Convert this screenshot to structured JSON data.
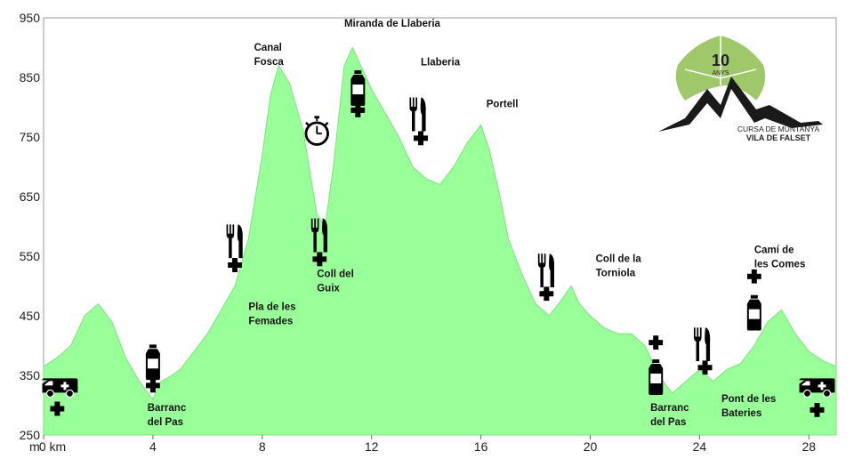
{
  "chart_data": {
    "type": "area",
    "title": "",
    "xlabel": "",
    "ylabel": "",
    "y_unit": "m",
    "x_unit": "km",
    "xlim": [
      0,
      29
    ],
    "ylim": [
      250,
      950
    ],
    "x_ticks": [
      0,
      4,
      8,
      12,
      16,
      20,
      24,
      28
    ],
    "y_ticks": [
      250,
      350,
      450,
      550,
      650,
      750,
      850,
      950
    ],
    "x_tick_labels": [
      "0 km",
      "4",
      "8",
      "12",
      "16",
      "20",
      "24",
      "28"
    ],
    "y_axis_unit_label": "m",
    "grid": false,
    "fill_color": "#99ff99",
    "series": [
      {
        "x": [
          0,
          0.5,
          1.0,
          1.5,
          2.0,
          2.5,
          3.0,
          3.5,
          4.0,
          4.3,
          4.7,
          5.0,
          5.5,
          6.0,
          6.5,
          7.0,
          7.5,
          8.0,
          8.3,
          8.6,
          9.0,
          9.5,
          10.0,
          10.3,
          10.6,
          11.0,
          11.3,
          11.6,
          12.0,
          12.5,
          13.0,
          13.5,
          14.0,
          14.5,
          15.0,
          15.5,
          16.0,
          16.3,
          16.7,
          17.0,
          17.5,
          18.0,
          18.5,
          19.0,
          19.3,
          19.6,
          20.0,
          20.5,
          21.0,
          21.5,
          22.0,
          22.5,
          23.0,
          23.5,
          24.0,
          24.5,
          25.0,
          25.5,
          26.0,
          26.5,
          27.0,
          27.5,
          28.0,
          28.5,
          29.0
        ],
        "y": [
          365,
          380,
          400,
          450,
          470,
          440,
          380,
          340,
          310,
          340,
          350,
          360,
          390,
          420,
          460,
          500,
          580,
          720,
          820,
          870,
          840,
          760,
          620,
          600,
          700,
          870,
          900,
          870,
          830,
          790,
          750,
          700,
          680,
          670,
          700,
          740,
          770,
          730,
          650,
          580,
          520,
          470,
          450,
          480,
          500,
          470,
          450,
          430,
          420,
          420,
          400,
          350,
          320,
          340,
          360,
          340,
          360,
          370,
          400,
          440,
          460,
          420,
          390,
          375,
          365
        ]
      }
    ],
    "annotations": [
      {
        "lines": [
          "Miranda de Llaberia"
        ],
        "x": 11.0,
        "y": 935
      },
      {
        "lines": [
          "Canal",
          "Fosca"
        ],
        "x": 7.7,
        "y": 895
      },
      {
        "lines": [
          "Llaberia"
        ],
        "x": 13.8,
        "y": 870
      },
      {
        "lines": [
          "Portell"
        ],
        "x": 16.2,
        "y": 800
      },
      {
        "lines": [
          "Coll del",
          "Guix"
        ],
        "x": 10.0,
        "y": 515
      },
      {
        "lines": [
          "Pla de les",
          "Femades"
        ],
        "x": 7.5,
        "y": 460
      },
      {
        "lines": [
          "Coll de la",
          "Torniola"
        ],
        "x": 20.2,
        "y": 540
      },
      {
        "lines": [
          "Camí de",
          "les Comes"
        ],
        "x": 26.0,
        "y": 555
      },
      {
        "lines": [
          "Barranc",
          "del Pas"
        ],
        "x": 3.8,
        "y": 290
      },
      {
        "lines": [
          "Barranc",
          "del Pas"
        ],
        "x": 22.2,
        "y": 290
      },
      {
        "lines": [
          "Pont de les",
          "Bateries"
        ],
        "x": 24.8,
        "y": 305
      }
    ],
    "icons": [
      {
        "name": "ambulance-icon",
        "x": 0.6,
        "y": 330
      },
      {
        "name": "first-aid-cross-icon",
        "x": 0.5,
        "y": 294
      },
      {
        "name": "water-bottle-icon",
        "x": 4.0,
        "y": 372
      },
      {
        "name": "first-aid-cross-icon",
        "x": 4.0,
        "y": 333
      },
      {
        "name": "cutlery-icon",
        "x": 7.0,
        "y": 575
      },
      {
        "name": "first-aid-cross-icon",
        "x": 7.0,
        "y": 535
      },
      {
        "name": "cutlery-icon",
        "x": 10.1,
        "y": 585
      },
      {
        "name": "first-aid-cross-icon",
        "x": 10.1,
        "y": 545
      },
      {
        "name": "stopwatch-icon",
        "x": 10.0,
        "y": 760
      },
      {
        "name": "water-bottle-icon",
        "x": 11.5,
        "y": 832
      },
      {
        "name": "first-aid-cross-icon",
        "x": 11.5,
        "y": 795
      },
      {
        "name": "cutlery-icon",
        "x": 13.7,
        "y": 788
      },
      {
        "name": "first-aid-cross-icon",
        "x": 13.8,
        "y": 748
      },
      {
        "name": "cutlery-icon",
        "x": 18.4,
        "y": 526
      },
      {
        "name": "first-aid-cross-icon",
        "x": 18.4,
        "y": 487
      },
      {
        "name": "first-aid-cross-icon",
        "x": 22.4,
        "y": 405
      },
      {
        "name": "water-bottle-icon",
        "x": 22.4,
        "y": 347
      },
      {
        "name": "cutlery-icon",
        "x": 24.1,
        "y": 402
      },
      {
        "name": "first-aid-cross-icon",
        "x": 24.2,
        "y": 363
      },
      {
        "name": "first-aid-cross-icon",
        "x": 26.0,
        "y": 516
      },
      {
        "name": "water-bottle-icon",
        "x": 26.0,
        "y": 455
      },
      {
        "name": "ambulance-icon",
        "x": 28.3,
        "y": 330
      },
      {
        "name": "first-aid-cross-icon",
        "x": 28.3,
        "y": 292
      }
    ]
  },
  "logo": {
    "number": "10",
    "number_sub": "ANYS",
    "line1": "CURSA DE MUNTANYA",
    "line2": "VILA DE FALSET",
    "leaf_color": "#9ec86a",
    "mountain_color": "#1a1a1a"
  }
}
